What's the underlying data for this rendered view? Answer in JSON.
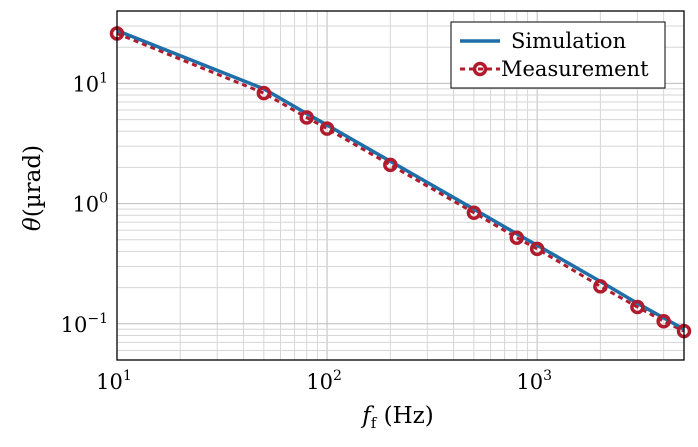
{
  "chart_data": {
    "type": "line",
    "xscale": "log",
    "yscale": "log",
    "xlim": [
      10,
      5000
    ],
    "ylim": [
      0.05,
      40
    ],
    "grid": true,
    "legend_position": "top-right",
    "xlabel": "f_f (Hz)",
    "ylabel": "θ(µrad)",
    "x_ticks": [
      {
        "value": 10,
        "base": "10",
        "exp": "1"
      },
      {
        "value": 100,
        "base": "10",
        "exp": "2"
      },
      {
        "value": 1000,
        "base": "10",
        "exp": "3"
      }
    ],
    "y_ticks": [
      {
        "value": 0.1,
        "base": "10",
        "exp": "−1"
      },
      {
        "value": 1,
        "base": "10",
        "exp": "0"
      },
      {
        "value": 10,
        "base": "10",
        "exp": "1"
      }
    ],
    "series": [
      {
        "name": "Simulation",
        "color": "#1f6ea8",
        "style": "solid",
        "x": [
          10,
          50,
          80,
          100,
          200,
          500,
          800,
          1000,
          2000,
          3000,
          4000,
          5000
        ],
        "y": [
          27.5,
          9.0,
          5.6,
          4.5,
          2.25,
          0.9,
          0.56,
          0.45,
          0.225,
          0.148,
          0.112,
          0.09
        ]
      },
      {
        "name": "Measurement",
        "color": "#b01c2e",
        "style": "dashed",
        "marker": "circle",
        "x": [
          10,
          50,
          80,
          100,
          200,
          500,
          800,
          1000,
          2000,
          3000,
          4000,
          5000
        ],
        "y": [
          26,
          8.3,
          5.2,
          4.2,
          2.1,
          0.84,
          0.52,
          0.42,
          0.205,
          0.138,
          0.105,
          0.087
        ]
      }
    ]
  }
}
